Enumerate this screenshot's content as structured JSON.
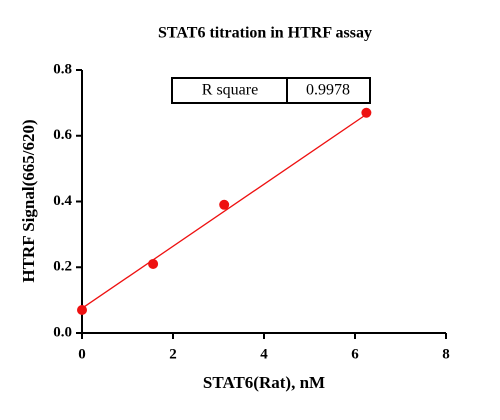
{
  "chart_data": {
    "type": "scatter",
    "title": "STAT6 titration in HTRF assay",
    "x_label": "STAT6(Rat), nM",
    "y_label": "HTRF Signal(665/620)",
    "series": [
      {
        "name": "STAT6",
        "color": "#ee1111",
        "x": [
          0,
          1.5625,
          3.125,
          6.25
        ],
        "values": [
          0.07,
          0.21,
          0.39,
          0.67
        ]
      }
    ],
    "fit": {
      "color": "#ee1111",
      "x": [
        0,
        6.25
      ],
      "values": [
        0.075,
        0.665
      ]
    },
    "annotation": {
      "label": "R square",
      "value": 0.9978
    },
    "xlim": [
      0,
      8
    ],
    "xticks": [
      0,
      2,
      4,
      6,
      8
    ],
    "ylim": [
      0,
      0.8
    ],
    "yticks": [
      {
        "value": 0,
        "label": "0.0"
      },
      0.2,
      0.4,
      0.6,
      0.8
    ]
  }
}
